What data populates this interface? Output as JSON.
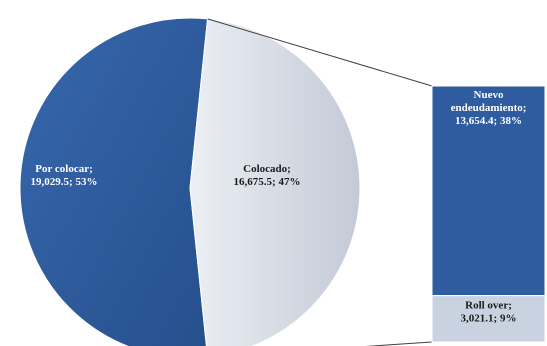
{
  "chart_data": {
    "type": "bar-of-pie",
    "pie": {
      "slices": [
        {
          "label": "Por colocar",
          "value": 19029.5,
          "percent": 53,
          "display": "19,029.5; 53%",
          "color": "#2e5c9e"
        },
        {
          "label": "Colocado",
          "value": 16675.5,
          "percent": 47,
          "display": "16,675.5; 47%",
          "color": "#d6dbe4"
        }
      ]
    },
    "bar": {
      "segments": [
        {
          "label": "Nuevo endeudamiento",
          "label_lines": [
            "Nuevo",
            "endeudamiento;"
          ],
          "value": 13654.4,
          "percent": 38,
          "display": "13,654.4; 38%",
          "color": "#2e5c9e"
        },
        {
          "label": "Roll over",
          "label_lines": [
            "Roll over;"
          ],
          "value": 3021.1,
          "percent": 9,
          "display": "3,021.1; 9%",
          "color": "#c9d2e0"
        }
      ]
    },
    "legend": "none",
    "grid": false
  }
}
